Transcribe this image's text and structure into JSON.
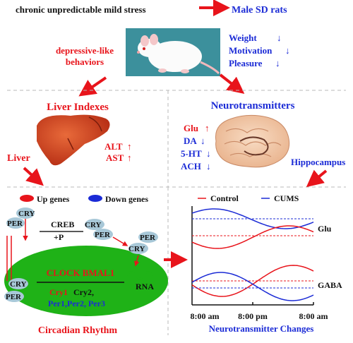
{
  "top": {
    "stress_label": "chronic unpredictable mild stress",
    "rats_label": "Male SD rats"
  },
  "behaviors": {
    "label_line1": "depressive-like",
    "label_line2": "behaviors",
    "items": [
      "Weight",
      "Motivation",
      "Pleasure"
    ],
    "direction": "↓"
  },
  "liver": {
    "section_title": "Liver Indexes",
    "markers": [
      "ALT",
      "AST"
    ],
    "direction": "↑",
    "side_label": "Liver"
  },
  "neuro": {
    "section_title": "Neurotransmitters",
    "items": [
      {
        "label": "Glu",
        "dir": "↑",
        "color": "#e8141b"
      },
      {
        "label": "DA",
        "dir": "↓",
        "color": "#1b2bd6"
      },
      {
        "label": "5-HT",
        "dir": "↓",
        "color": "#1b2bd6"
      },
      {
        "label": "ACH",
        "dir": "↓",
        "color": "#1b2bd6"
      }
    ],
    "region_label": "Hippocampus"
  },
  "genes_legend": {
    "up": "Up genes",
    "down": "Down genes",
    "up_color": "#e8141b",
    "down_color": "#1b2bd6"
  },
  "circadian": {
    "cry": "CRY",
    "per": "PER",
    "creb": "CREB",
    "phos": "+P",
    "clock_bmal": "CLOCK BMAL1",
    "cry1": "Cry1",
    "cry2": "Cry2,",
    "per_genes": "Per1,Per2, Per3",
    "rna": "RNA",
    "title": "Circadian Rhythm"
  },
  "chart_legend": {
    "control": "Control",
    "cums": "CUMS",
    "control_color": "#e8141b",
    "cums_color": "#1b2bd6"
  },
  "chart_data": {
    "type": "line",
    "x": [
      "8:00 am",
      "8:00 pm",
      "8:00 am"
    ],
    "xlabel": "Neurotransmitter Changes",
    "panels": [
      {
        "name": "Glu"
      },
      {
        "name": "GABA"
      }
    ]
  }
}
